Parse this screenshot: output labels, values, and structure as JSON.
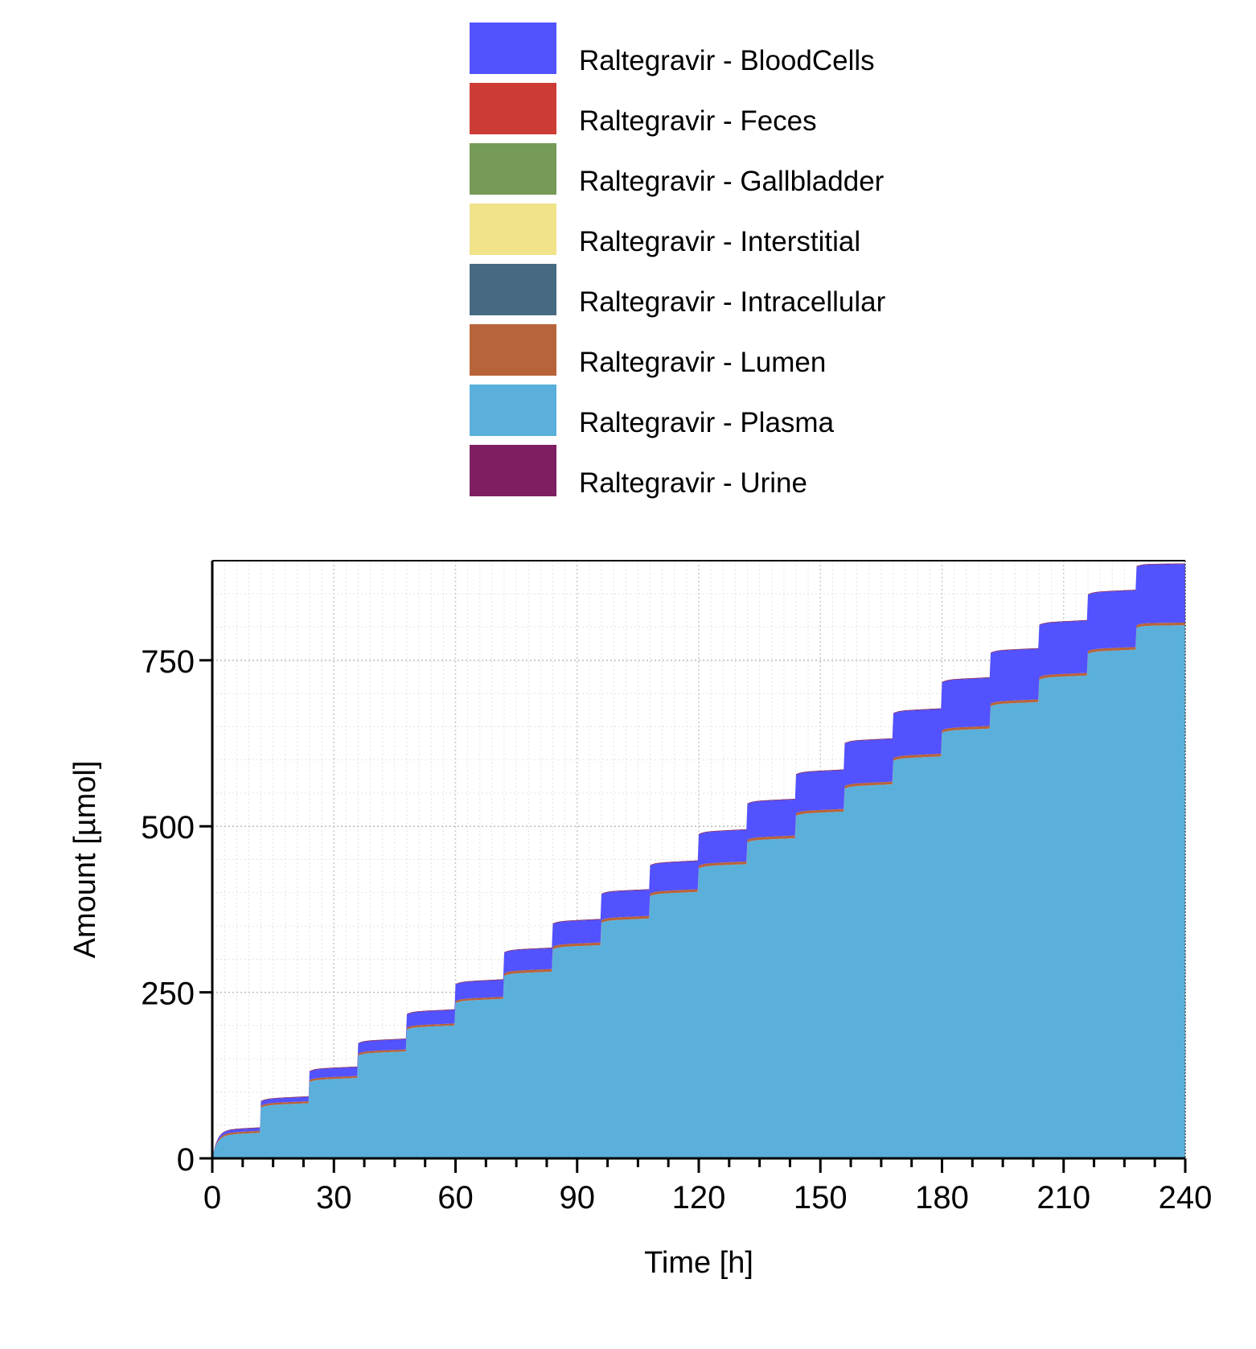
{
  "chart_data": {
    "type": "area",
    "stacked": true,
    "xlabel": "Time [h]",
    "ylabel": "Amount [µmol]",
    "xlim": [
      0,
      240
    ],
    "ylim": [
      0,
      900
    ],
    "xticks": [
      0,
      30,
      60,
      90,
      120,
      150,
      180,
      210,
      240
    ],
    "yticks": [
      0,
      250,
      500,
      750
    ],
    "grid": true,
    "legend_position": "top",
    "dosing_interval_h": 12,
    "x": [
      0,
      12,
      24,
      36,
      48,
      60,
      72,
      84,
      96,
      108,
      120,
      132,
      144,
      156,
      168,
      180,
      192,
      204,
      216,
      228,
      240
    ],
    "series": [
      {
        "name": "Raltegravir - Plasma",
        "color": "#5BB0DB",
        "values": [
          35,
          80,
          118,
          158,
          197,
          237,
          278,
          318,
          358,
          398,
          440,
          479,
          519,
          560,
          602,
          644,
          684,
          724,
          763,
          802,
          812
        ]
      },
      {
        "name": "Raltegravir - Lumen",
        "color": "#B8643A",
        "values": [
          3,
          3,
          3,
          3,
          3,
          3,
          4,
          4,
          4,
          4,
          4,
          4,
          4,
          4,
          4,
          4,
          4,
          4,
          4,
          4,
          4
        ]
      },
      {
        "name": "Raltegravir - Intracellular",
        "color": "#476A82",
        "values": [
          0,
          0,
          0,
          0,
          0,
          0,
          0,
          0,
          0,
          0,
          0,
          0,
          0,
          0,
          0,
          0,
          0,
          0,
          0,
          0,
          0
        ]
      },
      {
        "name": "Raltegravir - Interstitial",
        "color": "#F0E38A",
        "values": [
          0,
          0,
          0,
          0,
          0,
          0,
          0,
          0,
          0,
          0,
          0,
          0,
          0,
          0,
          0,
          0,
          0,
          0,
          0,
          0,
          0
        ]
      },
      {
        "name": "Raltegravir - Gallbladder",
        "color": "#759B57",
        "values": [
          0,
          0,
          0,
          0,
          0,
          0,
          0,
          0,
          0,
          0,
          0,
          0,
          0,
          0,
          0,
          0,
          0,
          0,
          0,
          0,
          0
        ]
      },
      {
        "name": "Raltegravir - Feces",
        "color": "#CC3C35",
        "values": [
          0,
          0,
          0,
          0,
          0,
          0,
          0,
          0,
          0,
          0,
          0,
          0,
          0,
          0,
          0,
          0,
          0,
          0,
          0,
          0,
          0
        ]
      },
      {
        "name": "Raltegravir - BloodCells",
        "color": "#5252FF",
        "values": [
          4,
          6,
          13,
          15,
          20,
          25,
          31,
          34,
          39,
          42,
          47,
          54,
          58,
          64,
          67,
          72,
          76,
          78,
          85,
          88,
          89
        ]
      },
      {
        "name": "Raltegravir - Urine",
        "color": "#7E2060",
        "values": [
          1,
          1,
          1,
          1,
          1,
          1,
          1,
          1,
          1,
          1,
          1,
          1,
          1,
          1,
          1,
          1,
          1,
          1,
          1,
          1,
          1
        ]
      }
    ]
  },
  "legend": {
    "items": [
      {
        "label": "Raltegravir - BloodCells",
        "color": "#5252FF"
      },
      {
        "label": "Raltegravir - Feces",
        "color": "#CC3C35"
      },
      {
        "label": "Raltegravir - Gallbladder",
        "color": "#759B57"
      },
      {
        "label": "Raltegravir - Interstitial",
        "color": "#F0E38A"
      },
      {
        "label": "Raltegravir - Intracellular",
        "color": "#476A82"
      },
      {
        "label": "Raltegravir - Lumen",
        "color": "#B8643A"
      },
      {
        "label": "Raltegravir - Plasma",
        "color": "#5BB0DB"
      },
      {
        "label": "Raltegravir - Urine",
        "color": "#7E2060"
      }
    ]
  }
}
